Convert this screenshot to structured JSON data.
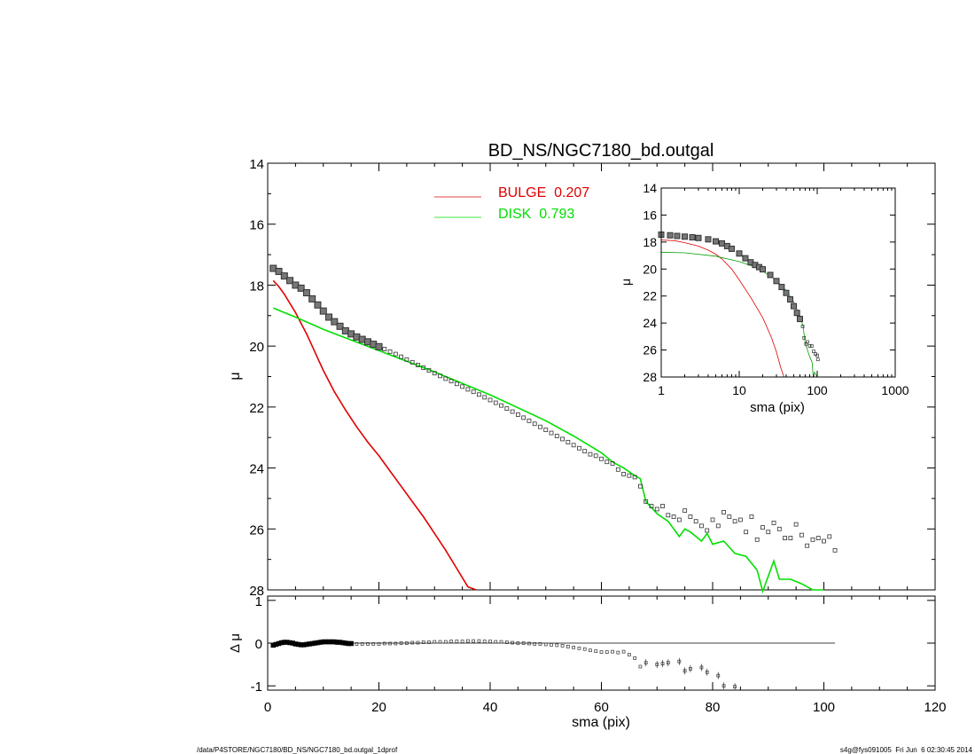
{
  "chart_data": [
    {
      "id": "main",
      "type": "scatter",
      "title": "BD_NS/NGC7180_bd.outgal",
      "ylabel": "μ",
      "xlim": [
        0,
        120
      ],
      "ylim": [
        28,
        14
      ],
      "x_ticks": [
        0,
        20,
        40,
        60,
        80,
        100,
        120
      ],
      "y_ticks": [
        14,
        16,
        18,
        20,
        22,
        24,
        26,
        28
      ],
      "legend": {
        "placement": "top-center",
        "entries": [
          {
            "label": "BULGE  0.207",
            "color": "#e00000"
          },
          {
            "label": "DISK  0.793",
            "color": "#00e000"
          }
        ]
      },
      "data_points": {
        "marker": "square",
        "x": [
          1,
          2,
          3,
          4,
          5,
          6,
          7,
          8,
          9,
          10,
          11,
          12,
          13,
          14,
          15,
          16,
          17,
          18,
          19,
          20,
          21,
          22,
          23,
          24,
          25,
          26,
          27,
          28,
          29,
          30,
          31,
          32,
          33,
          34,
          35,
          36,
          37,
          38,
          39,
          40,
          41,
          42,
          43,
          44,
          45,
          46,
          47,
          48,
          49,
          50,
          51,
          52,
          53,
          54,
          55,
          56,
          57,
          58,
          59,
          60,
          61,
          62,
          63,
          64,
          65,
          66,
          67,
          68,
          69,
          70,
          71,
          72,
          73,
          74,
          75,
          76,
          77,
          78,
          79,
          80,
          81,
          82,
          83,
          84,
          85,
          86,
          87,
          88,
          89,
          90,
          91,
          92,
          93,
          94,
          95,
          96,
          97,
          98,
          99,
          100,
          101,
          102
        ],
        "y": [
          17.45,
          17.55,
          17.7,
          17.85,
          18.0,
          18.1,
          18.25,
          18.45,
          18.65,
          18.85,
          19.05,
          19.2,
          19.35,
          19.5,
          19.6,
          19.7,
          19.78,
          19.86,
          19.94,
          20.02,
          20.1,
          20.18,
          20.26,
          20.35,
          20.44,
          20.53,
          20.62,
          20.71,
          20.8,
          20.89,
          20.98,
          21.07,
          21.15,
          21.24,
          21.33,
          21.42,
          21.5,
          21.59,
          21.68,
          21.77,
          21.86,
          21.95,
          22.05,
          22.15,
          22.25,
          22.35,
          22.45,
          22.55,
          22.65,
          22.75,
          22.85,
          22.95,
          23.05,
          23.15,
          23.25,
          23.35,
          23.45,
          23.55,
          23.6,
          23.7,
          23.8,
          23.85,
          24.05,
          24.2,
          24.25,
          24.3,
          24.6,
          25.1,
          25.25,
          25.35,
          25.25,
          25.55,
          25.6,
          25.7,
          25.4,
          25.6,
          25.75,
          25.9,
          26.05,
          25.7,
          25.9,
          25.45,
          25.6,
          25.75,
          25.7,
          26.1,
          25.6,
          26.35,
          25.95,
          26.1,
          25.8,
          26.0,
          26.3,
          26.3,
          25.85,
          26.2,
          26.55,
          26.35,
          26.3,
          26.4,
          26.25,
          26.7
        ]
      },
      "bulge_curve": {
        "color": "#e00000",
        "x": [
          1,
          2,
          3,
          4,
          5,
          6,
          7,
          8,
          9,
          10,
          12,
          14,
          16,
          18,
          20,
          22,
          24,
          26,
          28,
          30,
          32,
          34,
          36,
          37.5
        ],
        "y": [
          17.85,
          18.05,
          18.3,
          18.6,
          18.9,
          19.25,
          19.6,
          20.0,
          20.4,
          20.8,
          21.5,
          22.1,
          22.65,
          23.15,
          23.6,
          24.1,
          24.6,
          25.1,
          25.6,
          26.15,
          26.7,
          27.3,
          27.9,
          28.0
        ]
      },
      "disk_curve": {
        "color": "#00e000",
        "x": [
          1,
          5,
          10,
          15,
          20,
          30,
          40,
          50,
          55,
          60,
          62,
          64,
          66,
          67,
          68,
          70,
          72,
          74,
          75,
          76,
          78,
          79,
          80,
          82,
          84,
          86,
          88,
          89,
          91,
          92,
          94,
          96,
          98,
          100
        ],
        "y": [
          18.75,
          19.05,
          19.45,
          19.8,
          20.15,
          20.85,
          21.6,
          22.45,
          22.95,
          23.5,
          23.8,
          24.0,
          24.25,
          24.35,
          25.1,
          25.5,
          25.75,
          26.25,
          26.0,
          26.1,
          26.4,
          26.15,
          26.5,
          26.4,
          26.8,
          26.9,
          27.35,
          28.05,
          27.05,
          27.65,
          27.65,
          27.8,
          28.0,
          28.0
        ]
      }
    },
    {
      "id": "inset",
      "type": "scatter",
      "xlabel": "sma (pix)",
      "ylabel": "μ",
      "x_scale": "log",
      "xlim": [
        1,
        1000
      ],
      "ylim": [
        28,
        14
      ],
      "x_ticks": [
        1,
        10,
        100,
        1000
      ],
      "y_ticks": [
        14,
        16,
        18,
        20,
        22,
        24,
        26,
        28
      ],
      "data_points": {
        "x": [
          1,
          1.3,
          1.6,
          2,
          2.5,
          3,
          4,
          5,
          6,
          7,
          8,
          10,
          12,
          14,
          16,
          18,
          20,
          25,
          30,
          35,
          40,
          45,
          50,
          55,
          60,
          65,
          68,
          72,
          75,
          80,
          85,
          90,
          95,
          100,
          102
        ],
        "y": [
          17.45,
          17.5,
          17.55,
          17.6,
          17.65,
          17.7,
          17.8,
          17.95,
          18.1,
          18.3,
          18.5,
          18.85,
          19.2,
          19.5,
          19.7,
          19.86,
          20.02,
          20.44,
          20.89,
          21.33,
          21.77,
          22.25,
          22.75,
          23.25,
          23.7,
          24.25,
          25.1,
          25.55,
          25.4,
          25.7,
          25.7,
          26.1,
          26.3,
          26.4,
          26.7
        ]
      },
      "bulge_curve": {
        "color": "#e00000",
        "x": [
          1,
          1.5,
          2,
          3,
          4,
          5,
          6,
          8,
          10,
          14,
          20,
          26,
          30,
          34,
          37.5
        ],
        "y": [
          17.85,
          17.9,
          18.05,
          18.3,
          18.6,
          18.9,
          19.25,
          20.0,
          20.8,
          22.1,
          23.6,
          25.1,
          26.15,
          27.3,
          28.0
        ]
      },
      "disk_curve": {
        "color": "#00a000",
        "x": [
          1,
          2,
          5,
          10,
          15,
          20,
          30,
          40,
          50,
          60,
          66,
          70,
          76,
          80,
          86,
          89,
          92,
          96,
          100
        ],
        "y": [
          18.75,
          18.8,
          19.05,
          19.45,
          19.8,
          20.15,
          20.85,
          21.6,
          22.45,
          23.5,
          24.25,
          25.5,
          26.1,
          26.5,
          26.9,
          28.0,
          27.65,
          27.8,
          28.0
        ]
      }
    },
    {
      "id": "residual",
      "type": "scatter",
      "xlabel": "sma (pix)",
      "ylabel": "Δ μ",
      "xlim": [
        0,
        120
      ],
      "ylim": [
        -1.1,
        1.1
      ],
      "x_ticks": [
        0,
        20,
        40,
        60,
        80,
        100,
        120
      ],
      "y_ticks": [
        -1,
        0,
        1
      ],
      "zero_line_xmax": 102,
      "data_points": {
        "x": [
          1,
          1.5,
          2,
          2.5,
          3,
          3.5,
          4,
          4.5,
          5,
          5.5,
          6,
          6.5,
          7,
          7.5,
          8,
          8.5,
          9,
          9.5,
          10,
          10.5,
          11,
          11.5,
          12,
          12.5,
          13,
          13.5,
          14,
          14.5,
          15,
          16,
          17,
          18,
          19,
          20,
          21,
          22,
          23,
          24,
          25,
          26,
          27,
          28,
          29,
          30,
          31,
          32,
          33,
          34,
          35,
          36,
          37,
          38,
          39,
          40,
          41,
          42,
          43,
          44,
          45,
          46,
          47,
          48,
          49,
          50,
          51,
          52,
          53,
          54,
          55,
          56,
          57,
          58,
          59,
          60,
          61,
          62,
          63,
          64,
          65,
          66,
          67,
          68,
          70,
          71,
          72,
          74,
          75,
          76,
          78,
          79,
          81,
          82,
          84
        ],
        "y": [
          -0.05,
          -0.03,
          -0.01,
          0.01,
          0.02,
          0.02,
          0.01,
          0.0,
          -0.02,
          -0.03,
          -0.04,
          -0.04,
          -0.03,
          -0.02,
          -0.01,
          0.0,
          0.01,
          0.02,
          0.03,
          0.03,
          0.03,
          0.03,
          0.03,
          0.02,
          0.02,
          0.01,
          0.0,
          -0.01,
          -0.01,
          -0.02,
          -0.02,
          -0.02,
          -0.02,
          -0.02,
          -0.01,
          -0.01,
          -0.01,
          0.0,
          0.0,
          0.01,
          0.01,
          0.02,
          0.02,
          0.03,
          0.03,
          0.03,
          0.04,
          0.04,
          0.04,
          0.05,
          0.05,
          0.05,
          0.04,
          0.04,
          0.03,
          0.03,
          0.02,
          0.01,
          0.0,
          0.0,
          -0.01,
          -0.02,
          -0.02,
          -0.03,
          -0.04,
          -0.05,
          -0.06,
          -0.08,
          -0.1,
          -0.12,
          -0.14,
          -0.17,
          -0.19,
          -0.21,
          -0.21,
          -0.2,
          -0.22,
          -0.2,
          -0.27,
          -0.35,
          -0.55,
          -0.46,
          -0.5,
          -0.48,
          -0.46,
          -0.43,
          -0.65,
          -0.6,
          -0.57,
          -0.68,
          -0.76,
          -1.0,
          -1.02
        ]
      }
    }
  ],
  "footer": {
    "left": "/data/P4STORE/NGC7180/BD_NS/NGC7180_bd.outgal_1dprof",
    "right": "s4g@fys091005  Fri Jun  6 02:30:45 2014"
  }
}
